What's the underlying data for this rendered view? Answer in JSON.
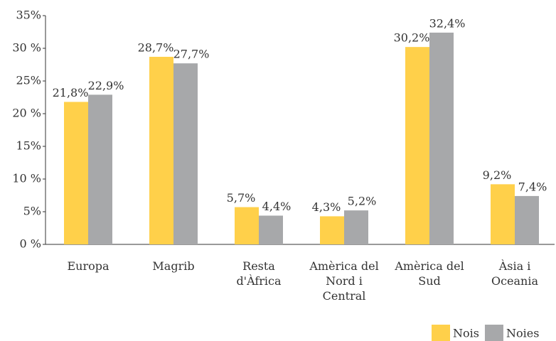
{
  "chart_data": {
    "type": "bar",
    "categories": [
      "Europa",
      "Magrib",
      "Resta d'Àfrica",
      "Amèrica del Nord i Central",
      "Amèrica del Sud",
      "Àsia i Oceania"
    ],
    "series": [
      {
        "name": "Nois",
        "color": "#ffd04a",
        "values": [
          21.8,
          28.7,
          5.7,
          4.3,
          30.2,
          9.2
        ],
        "value_labels": [
          "21,8%",
          "28,7%",
          "5,7%",
          "4,3%",
          "30,2%",
          "9,2%"
        ]
      },
      {
        "name": "Noies",
        "color": "#a7a8aa",
        "values": [
          22.9,
          27.7,
          4.4,
          5.2,
          32.4,
          7.4
        ],
        "value_labels": [
          "22,9%",
          "27,7%",
          "4,4%",
          "5,2%",
          "32,4%",
          "7,4%"
        ]
      }
    ],
    "ylim": [
      0,
      35
    ],
    "yticks": [
      {
        "value": 0,
        "label": "0 %"
      },
      {
        "value": 5,
        "label": "5%"
      },
      {
        "value": 10,
        "label": "10 %"
      },
      {
        "value": 15,
        "label": "15%"
      },
      {
        "value": 20,
        "label": "20 %"
      },
      {
        "value": 25,
        "label": "25%"
      },
      {
        "value": 30,
        "label": "30 %"
      },
      {
        "value": 35,
        "label": "35%"
      }
    ],
    "legend": "bottom-right"
  }
}
